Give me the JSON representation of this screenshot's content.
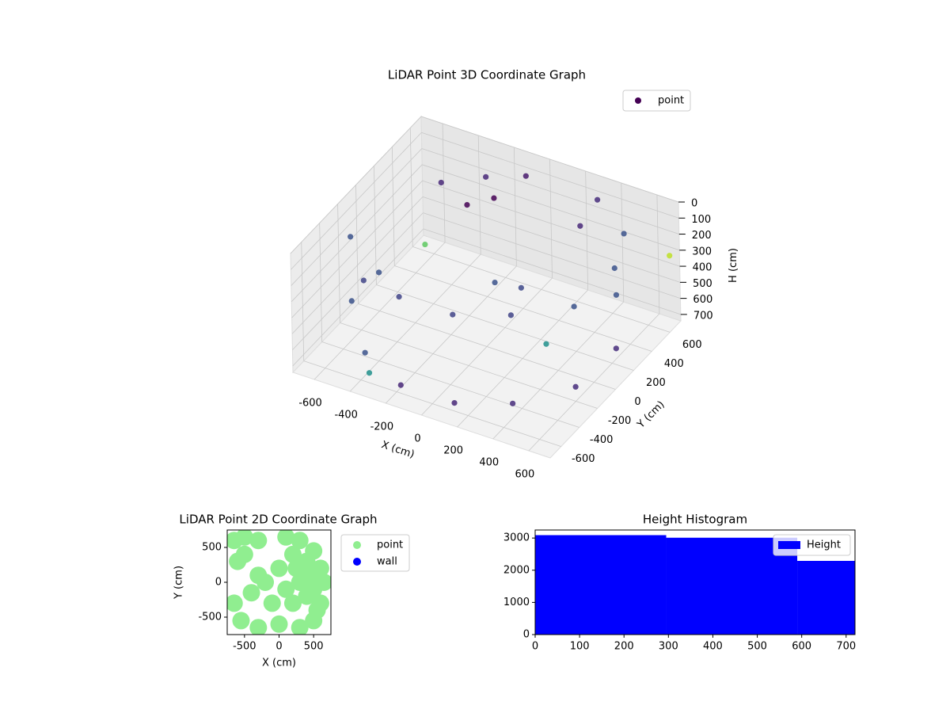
{
  "chart_data": [
    {
      "type": "scatter3d",
      "title": "LiDAR Point 3D Coordinate Graph",
      "xlabel": "X (cm)",
      "ylabel": "Y (cm)",
      "zlabel": "H (cm)",
      "xlim": [
        -720,
        720
      ],
      "ylim": [
        -720,
        720
      ],
      "zlim": [
        0,
        740
      ],
      "z_inverted": true,
      "xticks": [
        -600,
        -400,
        -200,
        0,
        200,
        400,
        600
      ],
      "yticks": [
        -600,
        -400,
        -200,
        0,
        200,
        400,
        600
      ],
      "zticks": [
        0,
        100,
        200,
        300,
        400,
        500,
        600,
        700
      ],
      "grid": true,
      "legend": "upper right",
      "series": [
        {
          "name": "point",
          "color": "#440154",
          "x": [
            -600,
            -600,
            -400,
            -400,
            -150,
            -150,
            150,
            150,
            400,
            400,
            600,
            600,
            650,
            650,
            550,
            500,
            300,
            200,
            -100,
            -300,
            -500,
            -200,
            -100,
            0,
            200,
            -600,
            -650,
            700,
            700,
            -300
          ],
          "y": [
            -300,
            -300,
            -550,
            -550,
            -650,
            -650,
            -650,
            -650,
            -500,
            -500,
            -200,
            -200,
            150,
            150,
            450,
            450,
            650,
            650,
            650,
            600,
            500,
            200,
            300,
            100,
            0,
            0,
            600,
            650,
            -700,
            -700
          ],
          "z": [
            100,
            500,
            150,
            600,
            100,
            650,
            100,
            650,
            100,
            650,
            150,
            650,
            100,
            600,
            100,
            500,
            100,
            300,
            100,
            150,
            200,
            50,
            30,
            400,
            300,
            500,
            700,
            300,
            50,
            600
          ],
          "colors": [
            "#3b528b",
            "#3b528b",
            "#414487",
            "#3b528b",
            "#414487",
            "#482878",
            "#414487",
            "#482878",
            "#414487",
            "#472d7b",
            "#3b528b",
            "#472d7b",
            "#3b528b",
            "#472d7b",
            "#3b528b",
            "#3b528b",
            "#472d7b",
            "#482878",
            "#481a6c",
            "#482878",
            "#482878",
            "#440154",
            "#440154",
            "#3b528b",
            "#3e4989",
            "#3b528b",
            "#5ec962",
            "#bddf26",
            "#21918c",
            "#21918c"
          ]
        }
      ]
    },
    {
      "type": "scatter",
      "title": "LiDAR Point 2D Coordinate Graph",
      "xlabel": "X (cm)",
      "ylabel": "Y (cm)",
      "xlim": [
        -750,
        750
      ],
      "ylim": [
        -750,
        750
      ],
      "xticks": [
        -500,
        0,
        500
      ],
      "yticks": [
        -500,
        0,
        500
      ],
      "legend": "outside right",
      "series": [
        {
          "name": "point",
          "color": "#90ee90",
          "x": [
            -650,
            -500,
            -300,
            100,
            300,
            500,
            600,
            650,
            600,
            500,
            300,
            0,
            -300,
            -550,
            -650,
            -400,
            -200,
            0,
            200,
            300,
            200,
            400,
            -100,
            -300,
            -600,
            100,
            -500,
            500,
            400,
            450,
            250,
            550
          ],
          "y": [
            600,
            650,
            600,
            650,
            600,
            450,
            200,
            0,
            -300,
            -550,
            -650,
            -600,
            -650,
            -550,
            -300,
            -150,
            0,
            200,
            400,
            0,
            -300,
            -200,
            -300,
            100,
            300,
            -100,
            400,
            -100,
            300,
            100,
            200,
            -400
          ]
        },
        {
          "name": "wall",
          "color": "#0000ff",
          "x": [],
          "y": []
        }
      ]
    },
    {
      "type": "hist",
      "title": "Height Histogram",
      "xlim": [
        0,
        720
      ],
      "ylim": [
        0,
        3250
      ],
      "xticks": [
        0,
        100,
        200,
        300,
        400,
        500,
        600,
        700
      ],
      "yticks": [
        0,
        1000,
        2000,
        3000
      ],
      "legend": "upper right",
      "series": [
        {
          "name": "Height",
          "color": "#0000ff",
          "bins": [
            0,
            295,
            590,
            720
          ],
          "counts": [
            3090,
            3010,
            2290
          ]
        }
      ]
    }
  ]
}
